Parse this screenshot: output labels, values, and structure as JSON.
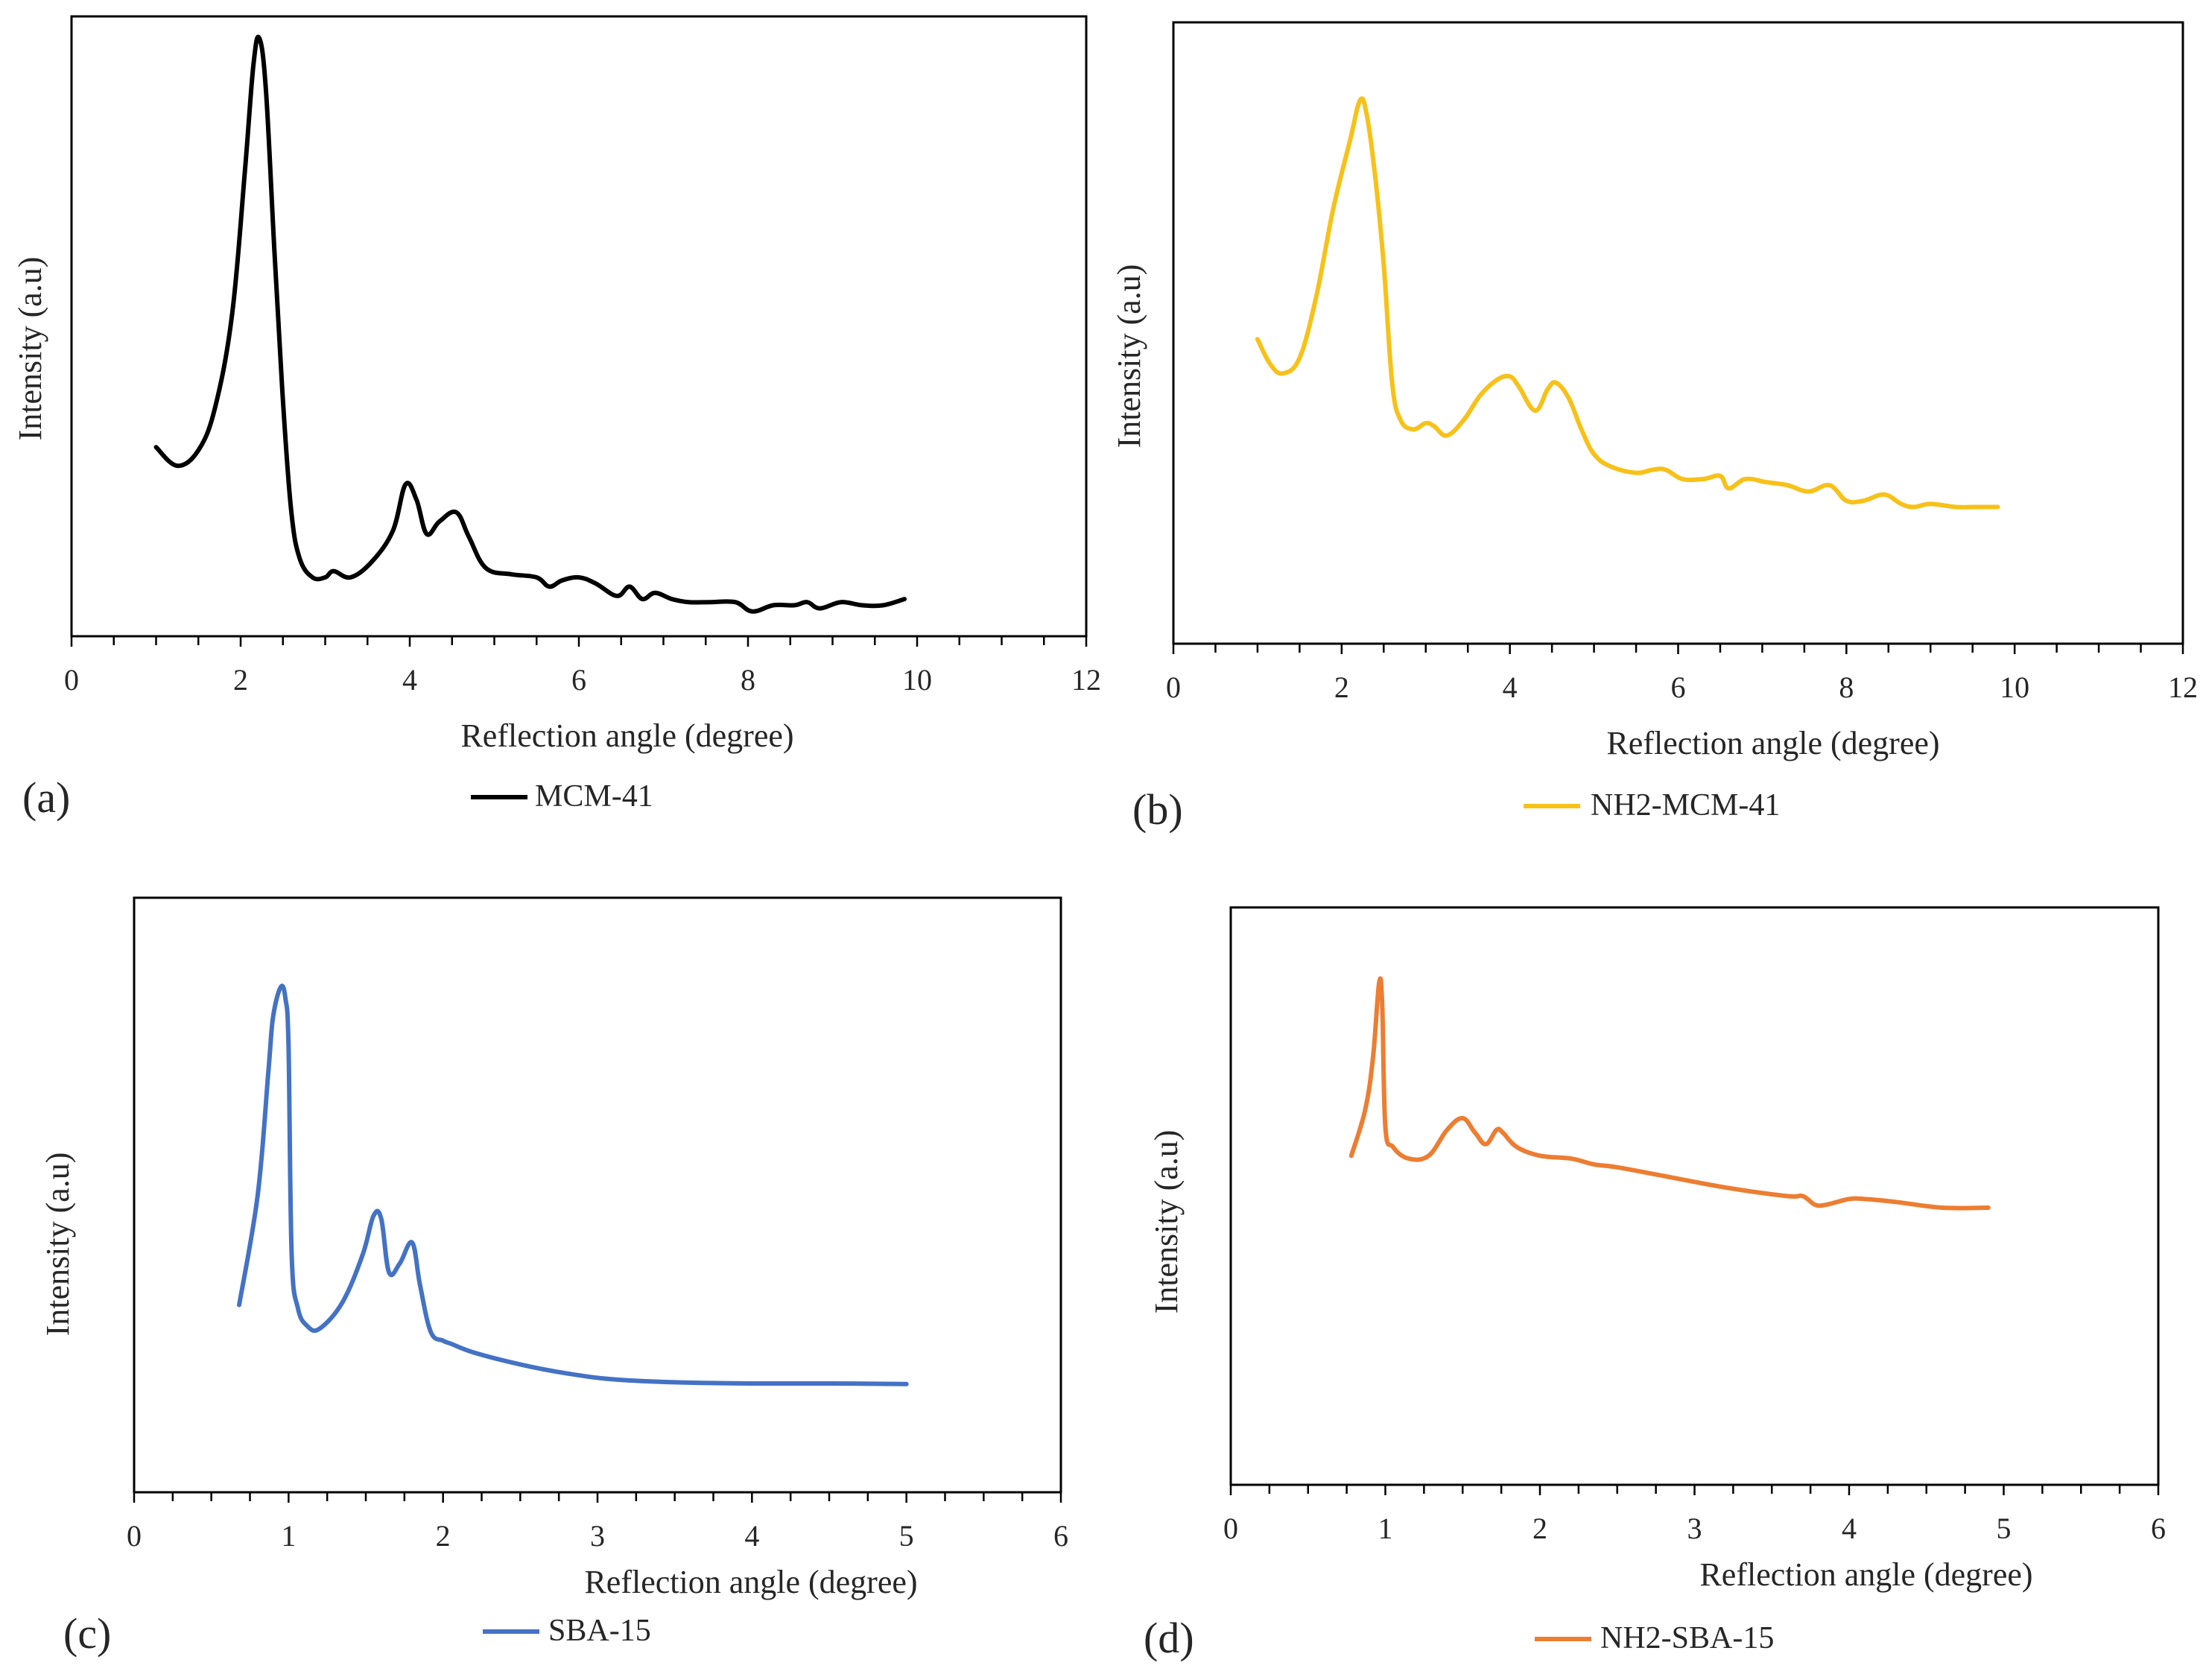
{
  "figure": {
    "background": "#ffffff"
  },
  "chart_data": [
    {
      "panel_label": "(a)",
      "type": "line",
      "xlabel": "Reflection angle (degree)",
      "ylabel": "Intensity (a.u)",
      "xlim": [
        0,
        12
      ],
      "xticks": [
        0,
        2,
        4,
        6,
        8,
        10,
        12
      ],
      "ylim": [
        0,
        100
      ],
      "legend_position": "bottom-center",
      "series": [
        {
          "name": "MCM-41",
          "color": "#000000",
          "x": [
            1.0,
            1.25,
            1.5,
            1.7,
            1.9,
            2.05,
            2.15,
            2.22,
            2.3,
            2.4,
            2.5,
            2.6,
            2.7,
            2.85,
            3.0,
            3.1,
            3.3,
            3.55,
            3.8,
            3.95,
            4.08,
            4.2,
            4.35,
            4.55,
            4.7,
            4.9,
            5.2,
            5.5,
            5.65,
            5.8,
            6.0,
            6.2,
            6.45,
            6.6,
            6.75,
            6.9,
            7.1,
            7.3,
            7.55,
            7.85,
            8.05,
            8.3,
            8.55,
            8.7,
            8.85,
            9.1,
            9.35,
            9.6,
            9.85
          ],
          "values": [
            30.5,
            27.5,
            30.0,
            37.0,
            52.0,
            75.0,
            92.0,
            96.5,
            88.0,
            62.0,
            38.0,
            20.0,
            12.5,
            9.5,
            9.5,
            10.5,
            9.5,
            12.0,
            17.0,
            24.5,
            22.0,
            16.5,
            18.5,
            20.0,
            16.0,
            11.0,
            10.0,
            9.5,
            8.0,
            9.0,
            9.5,
            8.5,
            6.5,
            8.0,
            6.0,
            7.0,
            6.0,
            5.5,
            5.5,
            5.5,
            4.0,
            5.0,
            5.0,
            5.5,
            4.5,
            5.5,
            5.0,
            5.0,
            6.0
          ]
        }
      ]
    },
    {
      "panel_label": "(b)",
      "type": "line",
      "xlabel": "Reflection angle (degree)",
      "ylabel": "Intensity (a.u)",
      "xlim": [
        0,
        12
      ],
      "xticks": [
        0,
        2,
        4,
        6,
        8,
        10,
        12
      ],
      "ylim": [
        0,
        100
      ],
      "legend_position": "bottom-center",
      "series": [
        {
          "name": "NH2-MCM-41",
          "color": "#f7c118",
          "x": [
            1.0,
            1.15,
            1.3,
            1.5,
            1.7,
            1.9,
            2.1,
            2.22,
            2.3,
            2.4,
            2.5,
            2.6,
            2.7,
            2.85,
            3.0,
            3.1,
            3.25,
            3.45,
            3.65,
            3.85,
            4.0,
            4.1,
            4.3,
            4.45,
            4.55,
            4.7,
            4.85,
            5.0,
            5.2,
            5.5,
            5.7,
            5.85,
            6.05,
            6.3,
            6.5,
            6.6,
            6.8,
            7.05,
            7.3,
            7.55,
            7.8,
            8.0,
            8.2,
            8.45,
            8.65,
            8.8,
            9.0,
            9.3,
            9.55,
            9.8
          ],
          "values": [
            49.0,
            45.0,
            43.5,
            46.0,
            56.0,
            70.0,
            81.0,
            87.5,
            85.0,
            75.0,
            61.0,
            42.0,
            36.0,
            34.5,
            35.5,
            35.0,
            33.5,
            36.0,
            40.0,
            42.5,
            43.0,
            41.5,
            37.5,
            41.0,
            42.0,
            39.5,
            34.5,
            30.5,
            28.5,
            27.5,
            28.0,
            28.0,
            26.5,
            26.5,
            27.0,
            25.0,
            26.5,
            26.0,
            25.5,
            24.5,
            25.5,
            23.0,
            23.0,
            24.0,
            22.5,
            22.0,
            22.5,
            22.0,
            22.0,
            22.0
          ]
        }
      ]
    },
    {
      "panel_label": "(c)",
      "type": "line",
      "xlabel": "Reflection angle (degree)",
      "ylabel": "Intensity (a.u)",
      "xlim": [
        0,
        6
      ],
      "xticks": [
        0,
        1,
        2,
        3,
        4,
        5,
        6
      ],
      "ylim": [
        0,
        100
      ],
      "legend_position": "bottom-center",
      "series": [
        {
          "name": "SBA-15",
          "color": "#4472c4",
          "x": [
            0.68,
            0.8,
            0.87,
            0.9,
            0.95,
            0.98,
            1.0,
            1.02,
            1.06,
            1.12,
            1.2,
            1.35,
            1.48,
            1.55,
            1.6,
            1.65,
            1.72,
            1.8,
            1.85,
            1.92,
            2.0,
            2.05,
            2.2,
            2.5,
            2.8,
            3.1,
            3.5,
            4.0,
            4.5,
            5.0
          ],
          "values": [
            31.5,
            50.0,
            71.0,
            80.0,
            85.0,
            83.0,
            75.0,
            40.0,
            31.0,
            28.0,
            27.5,
            32.0,
            40.0,
            46.5,
            46.0,
            37.0,
            38.5,
            42.0,
            35.0,
            27.0,
            25.5,
            25.0,
            23.5,
            21.5,
            20.0,
            19.0,
            18.5,
            18.3,
            18.3,
            18.2
          ]
        }
      ]
    },
    {
      "panel_label": "(d)",
      "type": "line",
      "xlabel": "Reflection angle (degree)",
      "ylabel": "Intensity (a.u)",
      "xlim": [
        0,
        6
      ],
      "xticks": [
        0,
        1,
        2,
        3,
        4,
        5,
        6
      ],
      "ylim": [
        0,
        100
      ],
      "legend_position": "bottom-center",
      "series": [
        {
          "name": "NH2-SBA-15",
          "color": "#ed7d31",
          "x": [
            0.78,
            0.87,
            0.92,
            0.96,
            0.98,
            1.0,
            1.05,
            1.15,
            1.28,
            1.4,
            1.5,
            1.58,
            1.65,
            1.72,
            1.76,
            1.85,
            2.0,
            2.2,
            2.35,
            2.5,
            2.8,
            3.2,
            3.6,
            3.7,
            3.78,
            3.85,
            4.0,
            4.1,
            4.3,
            4.6,
            4.9
          ],
          "values": [
            57.0,
            65.0,
            74.0,
            87.0,
            83.0,
            62.0,
            58.5,
            56.5,
            57.0,
            61.5,
            63.5,
            61.0,
            59.0,
            61.5,
            61.0,
            58.5,
            57.0,
            56.5,
            55.5,
            55.0,
            53.5,
            51.5,
            50.0,
            50.0,
            48.5,
            48.5,
            49.5,
            49.5,
            49.0,
            48.0,
            48.0
          ]
        }
      ]
    }
  ]
}
